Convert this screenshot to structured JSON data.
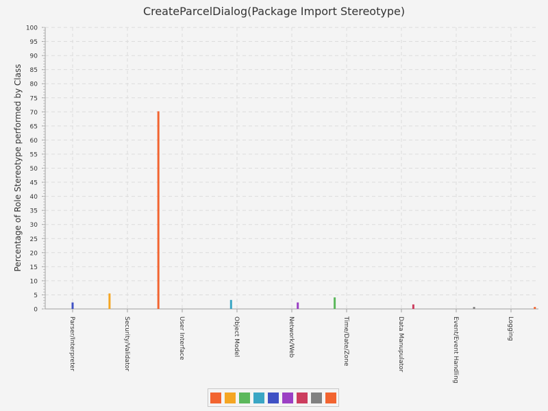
{
  "chart_data": {
    "type": "bar",
    "title": "CreateParcelDialog(Package Import Stereotype)",
    "ylabel": "Percentage of Role Stereotype performed by Class",
    "xlabel": "",
    "ylim": [
      0,
      100
    ],
    "ytick_step": 5,
    "grid": true,
    "legend_placement": "bottom",
    "categories": [
      "Parser/Interpreter",
      "Security/Validator",
      "User Interface",
      "Object Model",
      "Network/Web",
      "Time/Date/Zone",
      "Data Manupulator",
      "Event/Event Handling",
      "Logging"
    ],
    "series": [
      {
        "color": "#f26430",
        "values": [
          0,
          0,
          70.2,
          0,
          0,
          0,
          0,
          0,
          0
        ]
      },
      {
        "color": "#f5a623",
        "values": [
          0,
          5.5,
          0,
          0,
          0,
          0,
          0,
          0,
          0
        ]
      },
      {
        "color": "#5cb85c",
        "values": [
          0,
          0,
          0,
          0,
          0,
          4.1,
          0,
          0,
          0
        ]
      },
      {
        "color": "#3aa6c4",
        "values": [
          0,
          0,
          0,
          3.2,
          0,
          0,
          0,
          0,
          0
        ]
      },
      {
        "color": "#3f51c4",
        "values": [
          2.3,
          0,
          0,
          0,
          0,
          0,
          0,
          0,
          0
        ]
      },
      {
        "color": "#9b40c4",
        "values": [
          0,
          0,
          0,
          0,
          2.3,
          0,
          0,
          0,
          0
        ]
      },
      {
        "color": "#cc3d5e",
        "values": [
          0,
          0,
          0,
          0,
          0,
          0,
          1.6,
          0,
          0
        ]
      },
      {
        "color": "#808080",
        "values": [
          0,
          0,
          0,
          0,
          0,
          0,
          0,
          0.7,
          0
        ]
      },
      {
        "color": "#f26430",
        "values": [
          0,
          0,
          0,
          0,
          0,
          0,
          0,
          0,
          0.7
        ]
      }
    ]
  }
}
